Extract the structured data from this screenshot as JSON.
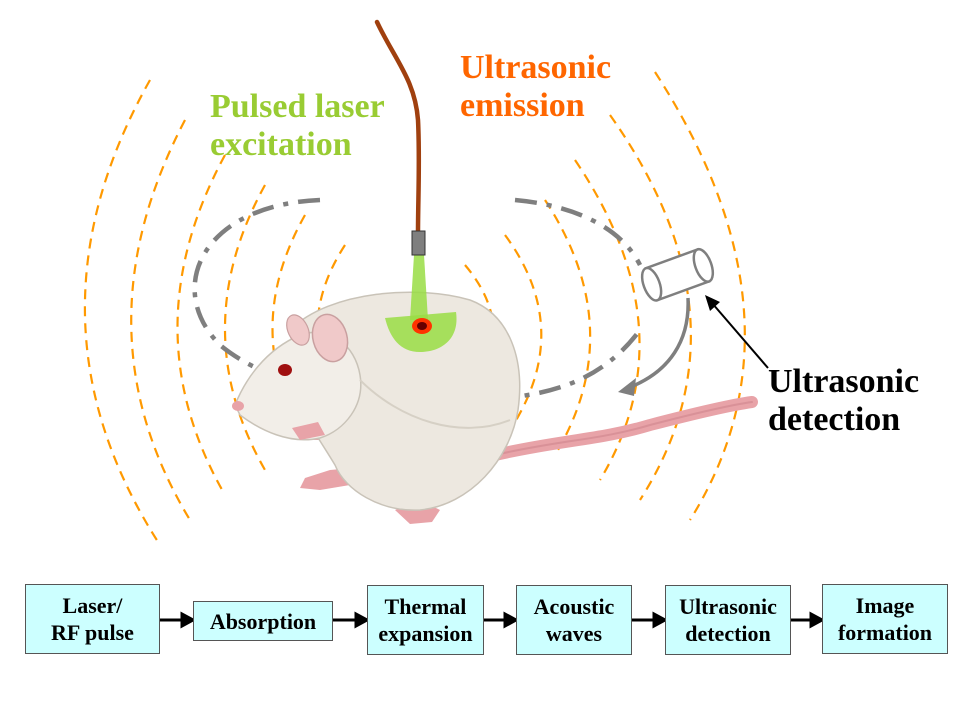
{
  "colors": {
    "laser_text": "#99cc33",
    "emission_text": "#ff6600",
    "detection_text": "#000000",
    "wave": "#ff9900",
    "dashdot_path": "#7f7f7f",
    "fiber": "#a0400f",
    "laser_beam": "#99dd44",
    "box_fill": "#ccffff",
    "rat_body": "#ede8e0",
    "rat_pink": "#e8a3a8"
  },
  "labels": {
    "laser": [
      "Pulsed laser",
      "excitation"
    ],
    "emission": [
      "Ultrasonic",
      "emission"
    ],
    "detection": [
      "Ultrasonic",
      "detection"
    ]
  },
  "icons": {
    "subject": "rat-icon",
    "transducer": "transducer-icon",
    "fiber": "optical-fiber-icon"
  },
  "flow": {
    "steps": [
      {
        "lines": [
          "Laser/",
          "RF pulse"
        ]
      },
      {
        "lines": [
          "Absorption"
        ]
      },
      {
        "lines": [
          "Thermal",
          "expansion"
        ]
      },
      {
        "lines": [
          "Acoustic",
          "waves"
        ]
      },
      {
        "lines": [
          "Ultrasonic",
          "detection"
        ]
      },
      {
        "lines": [
          "Image",
          "formation"
        ]
      }
    ]
  }
}
